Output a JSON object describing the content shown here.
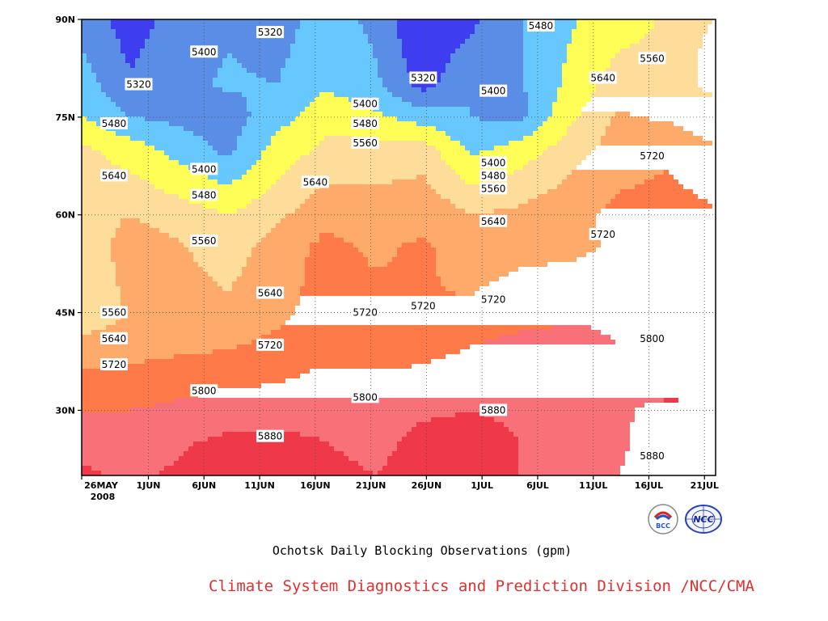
{
  "chart_data": {
    "type": "heatmap",
    "subtype": "filled-contour (time-latitude Hovmoller)",
    "title": "Ochotsk Daily Blocking Observations (gpm)",
    "credit": "Climate System Diagnostics and Prediction Division /NCC/CMA",
    "x_ticks": [
      "26MAY",
      "1JUN",
      "6JUN",
      "11JUN",
      "16JUN",
      "21JUN",
      "26JUN",
      "1JUL",
      "6JUL",
      "11JUL",
      "16JUL",
      "21JUL"
    ],
    "x_year_label": "2008",
    "x_range": [
      "2008-05-26",
      "2008-07-22"
    ],
    "y_ticks": [
      "30N",
      "45N",
      "60N",
      "75N",
      "90N"
    ],
    "y_range": [
      20,
      90
    ],
    "grid": true,
    "contour_levels": [
      5320,
      5400,
      5480,
      5560,
      5640,
      5720,
      5800,
      5880
    ],
    "band_colors": [
      "#3e3ef0",
      "#5a8ee6",
      "#66c8ff",
      "#fefe56",
      "#fedc9a",
      "#feaa6a",
      "#fe7a48",
      "#f87078",
      "#ef3848"
    ],
    "contour_labels": [
      [
        "5320",
        "5400",
        "5320",
        "5320",
        "5400",
        "5480",
        "5480",
        "5560",
        "5640",
        "5720",
        "5720",
        "5720",
        "5800",
        "5880"
      ]
    ],
    "rows": [
      {
        "lat": 90,
        "values": [
          5370,
          5280,
          5360,
          5390,
          5360,
          5440,
          5380,
          5240,
          5300,
          5400,
          5470,
          5520,
          5570,
          5560
        ]
      },
      {
        "lat": 80,
        "values": [
          5440,
          5330,
          5380,
          5410,
          5400,
          5470,
          5420,
          5290,
          5400,
          5390,
          5500,
          5600,
          5590,
          5540
        ]
      },
      {
        "lat": 75,
        "values": [
          5480,
          5400,
          5380,
          5360,
          5450,
          5530,
          5500,
          5440,
          5400,
          5380,
          5540,
          5650,
          5630,
          5590
        ]
      },
      {
        "lat": 70,
        "values": [
          5580,
          5520,
          5450,
          5380,
          5510,
          5580,
          5590,
          5600,
          5460,
          5520,
          5600,
          5680,
          5700,
          5650
        ]
      },
      {
        "lat": 60,
        "values": [
          5600,
          5640,
          5600,
          5560,
          5620,
          5700,
          5680,
          5700,
          5640,
          5660,
          5700,
          5740,
          5760,
          5730
        ]
      },
      {
        "lat": 55,
        "values": [
          5570,
          5690,
          5650,
          5600,
          5680,
          5740,
          5710,
          5730,
          5690,
          5700,
          5700,
          5730,
          5770,
          5750
        ]
      },
      {
        "lat": 45,
        "values": [
          5560,
          5650,
          5670,
          5660,
          5700,
          5750,
          5740,
          5720,
          5730,
          5760,
          5790,
          5790,
          5790,
          5790
        ]
      },
      {
        "lat": 40,
        "values": [
          5680,
          5690,
          5700,
          5710,
          5740,
          5760,
          5760,
          5770,
          5800,
          5830,
          5820,
          5800,
          5800,
          5800
        ]
      },
      {
        "lat": 35,
        "values": [
          5730,
          5740,
          5760,
          5780,
          5790,
          5820,
          5810,
          5820,
          5840,
          5860,
          5850,
          5840,
          5840,
          5840
        ]
      },
      {
        "lat": 30,
        "values": [
          5800,
          5800,
          5820,
          5840,
          5840,
          5860,
          5850,
          5870,
          5880,
          5870,
          5860,
          5870,
          5900,
          5890
        ]
      },
      {
        "lat": 25,
        "values": [
          5860,
          5850,
          5870,
          5900,
          5900,
          5880,
          5860,
          5900,
          5900,
          5880,
          5860,
          5870,
          5910,
          5900
        ]
      },
      {
        "lat": 20,
        "values": [
          5890,
          5870,
          5890,
          5910,
          5910,
          5900,
          5880,
          5910,
          5910,
          5880,
          5870,
          5880,
          5910,
          5900
        ]
      }
    ]
  },
  "logos": [
    {
      "name": "bcc-logo",
      "text": "BCC"
    },
    {
      "name": "ncc-logo",
      "text": "NCC"
    }
  ]
}
